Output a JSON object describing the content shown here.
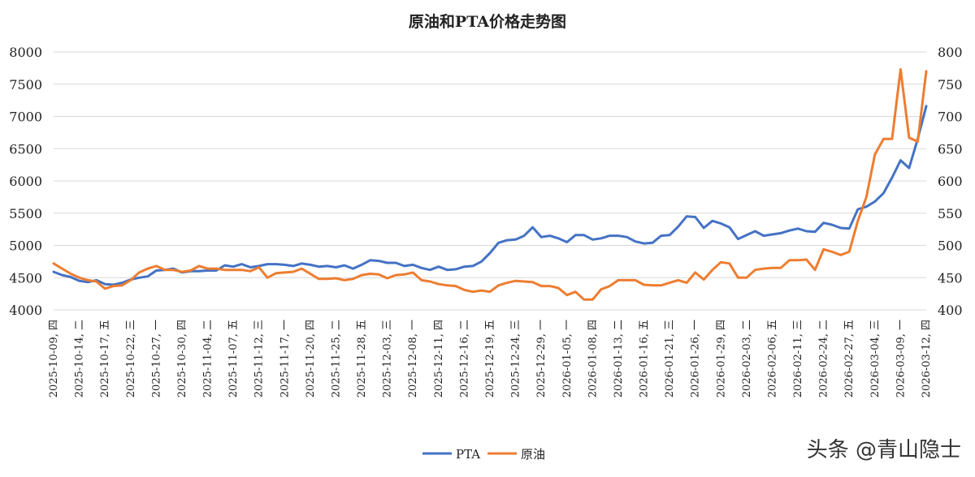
{
  "chart_data": {
    "type": "line",
    "title": "原油和PTA价格走势图",
    "xlabel": "",
    "ylabel": "",
    "y_left_lim": [
      4000,
      8000
    ],
    "y_left_ticks": [
      4000,
      4500,
      5000,
      5500,
      6000,
      6500,
      7000,
      7500,
      8000
    ],
    "y_right_lim": [
      400,
      800
    ],
    "y_right_ticks": [
      400,
      450,
      500,
      550,
      600,
      650,
      700,
      750,
      800
    ],
    "grid": true,
    "legend_position": "bottom",
    "x_tick_labels": [
      "2025-10-09, 四",
      "2025-10-14, 二",
      "2025-10-17, 五",
      "2025-10-22, 三",
      "2025-10-27, 一",
      "2025-10-30, 四",
      "2025-11-04, 二",
      "2025-11-07, 五",
      "2025-11-12, 三",
      "2025-11-17, 一",
      "2025-11-20, 四",
      "2025-11-25, 二",
      "2025-11-28, 五",
      "2025-12-03, 三",
      "2025-12-08, 一",
      "2025-12-11, 四",
      "2025-12-16, 二",
      "2025-12-19, 五",
      "2025-12-24, 三",
      "2025-12-29, 一",
      "2026-01-05, 一",
      "2026-01-08, 四",
      "2026-01-13, 二",
      "2026-01-16, 五",
      "2026-01-21, 三",
      "2026-01-26, 一",
      "2026-01-29, 四",
      "2026-02-03, 二",
      "2026-02-06, 五",
      "2026-02-11, 三",
      "2026-02-24, 二",
      "2026-02-27, 五",
      "2026-03-04, 三",
      "2026-03-09, 一",
      "2026-03-12, 四"
    ],
    "series": [
      {
        "name": "PTA",
        "axis": "left",
        "color": "#4472C4",
        "values": [
          4590,
          4540,
          4510,
          4450,
          4430,
          4460,
          4400,
          4390,
          4420,
          4470,
          4500,
          4520,
          4610,
          4620,
          4640,
          4580,
          4600,
          4600,
          4610,
          4610,
          4690,
          4670,
          4710,
          4660,
          4680,
          4710,
          4710,
          4700,
          4680,
          4720,
          4700,
          4670,
          4680,
          4660,
          4690,
          4640,
          4700,
          4770,
          4760,
          4730,
          4730,
          4680,
          4700,
          4650,
          4620,
          4670,
          4620,
          4630,
          4670,
          4680,
          4750,
          4880,
          5040,
          5080,
          5090,
          5150,
          5280,
          5130,
          5150,
          5110,
          5050,
          5160,
          5160,
          5090,
          5110,
          5150,
          5150,
          5130,
          5060,
          5030,
          5040,
          5150,
          5160,
          5290,
          5450,
          5440,
          5270,
          5380,
          5340,
          5280,
          5100,
          5160,
          5220,
          5150,
          5170,
          5190,
          5230,
          5260,
          5220,
          5210,
          5350,
          5320,
          5270,
          5260,
          5560,
          5600,
          5680,
          5810,
          6050,
          6320,
          6200,
          6650,
          7160
        ]
      },
      {
        "name": "原油",
        "axis": "right",
        "color": "#ED7D31",
        "values": [
          472,
          464,
          456,
          450,
          446,
          444,
          433,
          437,
          438,
          446,
          458,
          464,
          468,
          462,
          462,
          459,
          461,
          468,
          464,
          464,
          462,
          462,
          462,
          460,
          466,
          450,
          457,
          458,
          459,
          464,
          456,
          448,
          448,
          449,
          446,
          448,
          454,
          456,
          455,
          449,
          454,
          455,
          458,
          446,
          444,
          440,
          438,
          437,
          431,
          428,
          430,
          428,
          438,
          442,
          445,
          444,
          443,
          437,
          437,
          434,
          423,
          428,
          416,
          416,
          432,
          437,
          446,
          446,
          446,
          439,
          438,
          438,
          442,
          446,
          442,
          458,
          447,
          462,
          474,
          472,
          450,
          450,
          462,
          464,
          465,
          465,
          477,
          477,
          478,
          462,
          494,
          490,
          485,
          490,
          538,
          575,
          641,
          665,
          665,
          773,
          667,
          661,
          770
        ]
      }
    ]
  },
  "legend": {
    "pta_label": "PTA",
    "oil_label": "原油"
  },
  "watermark": "头条 @青山隐士"
}
